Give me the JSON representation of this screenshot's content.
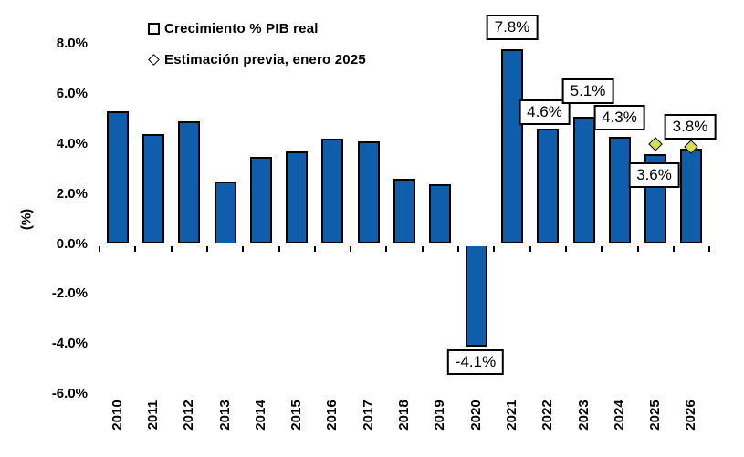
{
  "legend": {
    "items": [
      {
        "label": "Crecimiento % PIB real",
        "marker": "square",
        "color": "#0F5EAC"
      },
      {
        "label": "Estimación previa, enero 2025",
        "marker": "diamond",
        "color": "#D6DE4F"
      }
    ]
  },
  "y_axis": {
    "label": "(%)",
    "tick_labels": [
      "8.0%",
      "6.0%",
      "4.0%",
      "2.0%",
      "0.0%",
      "-2.0%",
      "-4.0%",
      "-6.0%"
    ]
  },
  "chart_data": {
    "type": "bar",
    "title": "",
    "xlabel": "",
    "ylabel": "(%)",
    "ylim": [
      -6,
      8
    ],
    "ytick_step": 2,
    "grid": false,
    "legend_position": "top-left",
    "categories": [
      "2010",
      "2011",
      "2012",
      "2013",
      "2014",
      "2015",
      "2016",
      "2017",
      "2018",
      "2019",
      "2020",
      "2021",
      "2022",
      "2023",
      "2024",
      "2025",
      "2026"
    ],
    "series": [
      {
        "name": "Crecimiento % PIB real",
        "type": "bar",
        "color": "#0F5EAC",
        "border_color": "#000000",
        "values": [
          5.3,
          4.4,
          4.9,
          2.5,
          3.5,
          3.7,
          4.2,
          4.1,
          2.6,
          2.4,
          -4.1,
          7.8,
          4.6,
          5.1,
          4.3,
          3.6,
          3.8
        ]
      },
      {
        "name": "Estimación previa, enero 2025",
        "type": "scatter",
        "marker": "diamond",
        "color": "#D6DE4F",
        "points": [
          {
            "category": "2025",
            "value": 4.0
          },
          {
            "category": "2026",
            "value": 3.9
          }
        ]
      }
    ],
    "data_labels": [
      {
        "category": "2020",
        "text": "-4.1%"
      },
      {
        "category": "2021",
        "text": "7.8%"
      },
      {
        "category": "2022",
        "text": "4.6%"
      },
      {
        "category": "2023",
        "text": "5.1%"
      },
      {
        "category": "2024",
        "text": "4.3%"
      },
      {
        "category": "2025",
        "text": "3.6%"
      },
      {
        "category": "2026",
        "text": "3.8%"
      }
    ]
  }
}
